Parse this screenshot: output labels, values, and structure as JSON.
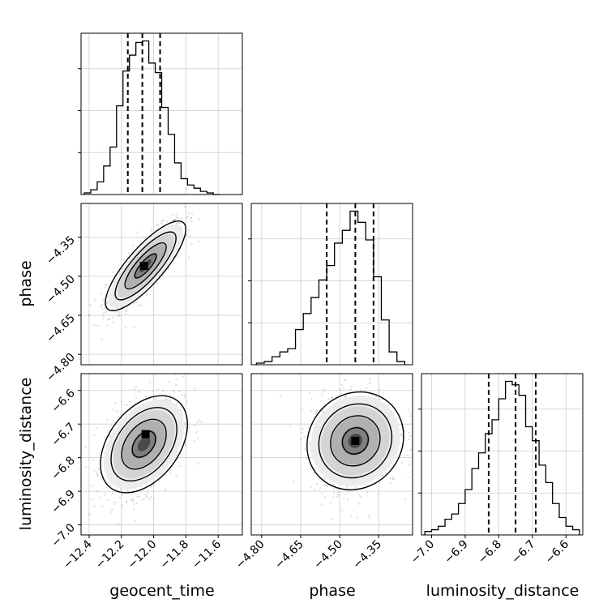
{
  "figure": {
    "parameters": [
      "geocent_time",
      "phase",
      "luminosity_distance"
    ]
  },
  "axes": {
    "geocent_time": {
      "label": "geocent_time",
      "range": [
        -12.45,
        -11.45
      ],
      "ticks": [
        -12.4,
        -12.2,
        -12.0,
        -11.8,
        -11.6
      ],
      "tick_labels": [
        "−12.4",
        "−12.2",
        "−12.0",
        "−11.8",
        "−11.6"
      ]
    },
    "phase": {
      "label": "phase",
      "range": [
        -4.84,
        -4.22
      ],
      "ticks": [
        -4.8,
        -4.65,
        -4.5,
        -4.35
      ],
      "tick_labels": [
        "−4.80",
        "−4.65",
        "−4.50",
        "−4.35"
      ]
    },
    "luminosity_distance": {
      "label": "luminosity_distance",
      "range": [
        -7.03,
        -6.55
      ],
      "ticks": [
        -7.0,
        -6.9,
        -6.8,
        -6.7,
        -6.6
      ],
      "tick_labels": [
        "−7.0",
        "−6.9",
        "−6.8",
        "−6.7",
        "−6.6"
      ]
    }
  },
  "chart_data": {
    "type": "corner",
    "grid": true,
    "histograms": [
      {
        "param": "geocent_time",
        "bin_edges": [
          -12.43,
          -12.39,
          -12.35,
          -12.31,
          -12.27,
          -12.23,
          -12.19,
          -12.15,
          -12.11,
          -12.07,
          -12.03,
          -11.99,
          -11.95,
          -11.91,
          -11.87,
          -11.83,
          -11.79,
          -11.75,
          -11.71,
          -11.67,
          -11.63,
          -11.59
        ],
        "counts": [
          1,
          3,
          8,
          18,
          30,
          56,
          78,
          88,
          96,
          97,
          83,
          77,
          55,
          38,
          20,
          10,
          6,
          4,
          2,
          1,
          0
        ],
        "quantiles": [
          -12.16,
          -12.07,
          -11.96
        ]
      },
      {
        "param": "phase",
        "bin_edges": [
          -4.82,
          -4.79,
          -4.76,
          -4.73,
          -4.7,
          -4.67,
          -4.64,
          -4.61,
          -4.58,
          -4.55,
          -4.52,
          -4.49,
          -4.46,
          -4.43,
          -4.4,
          -4.37,
          -4.34,
          -4.31,
          -4.28,
          -4.25
        ],
        "counts": [
          1,
          2,
          5,
          8,
          10,
          22,
          32,
          42,
          53,
          62,
          76,
          84,
          96,
          89,
          78,
          55,
          28,
          8,
          2
        ],
        "quantiles": [
          -4.55,
          -4.44,
          -4.37
        ]
      },
      {
        "param": "luminosity_distance",
        "bin_edges": [
          -7.02,
          -7.0,
          -6.98,
          -6.96,
          -6.94,
          -6.92,
          -6.9,
          -6.88,
          -6.86,
          -6.84,
          -6.82,
          -6.8,
          -6.78,
          -6.76,
          -6.74,
          -6.72,
          -6.7,
          -6.68,
          -6.66,
          -6.64,
          -6.62,
          -6.6,
          -6.58,
          -6.56
        ],
        "counts": [
          2,
          3,
          5,
          9,
          12,
          18,
          26,
          38,
          47,
          58,
          66,
          78,
          88,
          86,
          80,
          62,
          54,
          40,
          30,
          18,
          10,
          5,
          3
        ],
        "quantiles": [
          -6.83,
          -6.75,
          -6.69
        ]
      }
    ],
    "pairs": [
      {
        "x": "geocent_time",
        "y": "phase",
        "center": [
          -12.05,
          -4.46
        ],
        "sigma": [
          0.12,
          0.085
        ],
        "rho": 0.82,
        "mode": [
          -12.06,
          -4.46
        ]
      },
      {
        "x": "geocent_time",
        "y": "luminosity_distance",
        "center": [
          -12.06,
          -6.76
        ],
        "sigma": [
          0.12,
          0.075
        ],
        "rho": 0.42,
        "mode": [
          -12.05,
          -6.73
        ]
      },
      {
        "x": "phase",
        "y": "luminosity_distance",
        "center": [
          -4.44,
          -6.75
        ],
        "sigma": [
          0.085,
          0.075
        ],
        "rho": 0.1,
        "mode": [
          -4.44,
          -6.75
        ]
      }
    ]
  }
}
